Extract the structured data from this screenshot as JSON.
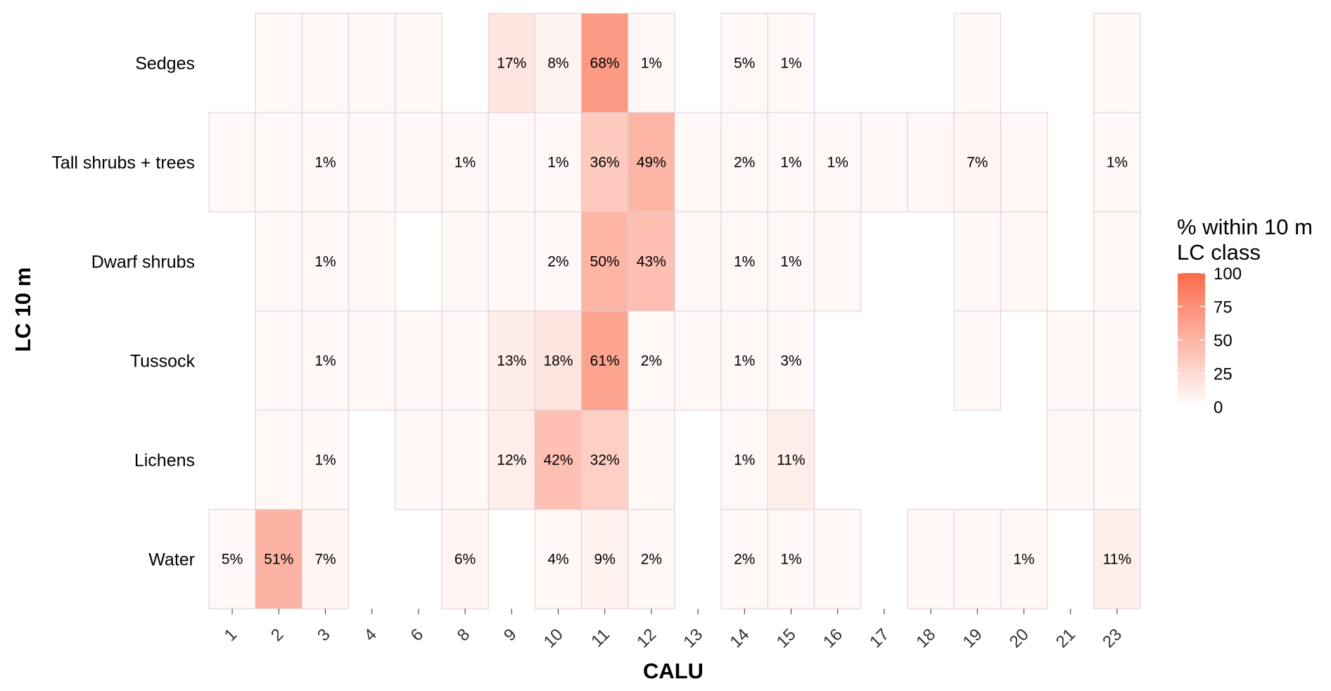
{
  "chart_data": {
    "type": "heatmap",
    "xlabel": "CALU",
    "ylabel": "LC 10 m",
    "x_categories": [
      "1",
      "2",
      "3",
      "4",
      "6",
      "8",
      "9",
      "10",
      "11",
      "12",
      "13",
      "14",
      "15",
      "16",
      "17",
      "18",
      "19",
      "20",
      "21",
      "23"
    ],
    "y_categories": [
      "Sedges",
      "Tall shrubs + trees",
      "Dwarf shrubs",
      "Tussock",
      "Lichens",
      "Water"
    ],
    "legend": {
      "title_line1": "% within 10 m",
      "title_line2": "LC class",
      "range": [
        0,
        100
      ],
      "ticks": [
        "100",
        "75",
        "50",
        "25",
        "0"
      ],
      "low_color": "#ffffff",
      "high_color": "#fb6a4a",
      "placement": "right"
    },
    "cells": [
      {
        "y": "Sedges",
        "x": "2",
        "value": 0.2
      },
      {
        "y": "Sedges",
        "x": "3",
        "value": 0.2
      },
      {
        "y": "Sedges",
        "x": "4",
        "value": 0.2
      },
      {
        "y": "Sedges",
        "x": "6",
        "value": 0.2
      },
      {
        "y": "Sedges",
        "x": "9",
        "value": 17,
        "label": "17%"
      },
      {
        "y": "Sedges",
        "x": "10",
        "value": 8,
        "label": "8%"
      },
      {
        "y": "Sedges",
        "x": "11",
        "value": 68,
        "label": "68%"
      },
      {
        "y": "Sedges",
        "x": "12",
        "value": 1,
        "label": "1%"
      },
      {
        "y": "Sedges",
        "x": "14",
        "value": 5,
        "label": "5%"
      },
      {
        "y": "Sedges",
        "x": "15",
        "value": 1,
        "label": "1%"
      },
      {
        "y": "Sedges",
        "x": "19",
        "value": 0.2
      },
      {
        "y": "Sedges",
        "x": "23",
        "value": 0.2
      },
      {
        "y": "Tall shrubs + trees",
        "x": "1",
        "value": 0.3
      },
      {
        "y": "Tall shrubs + trees",
        "x": "2",
        "value": 0.3
      },
      {
        "y": "Tall shrubs + trees",
        "x": "3",
        "value": 1,
        "label": "1%"
      },
      {
        "y": "Tall shrubs + trees",
        "x": "4",
        "value": 0.3
      },
      {
        "y": "Tall shrubs + trees",
        "x": "6",
        "value": 0.3
      },
      {
        "y": "Tall shrubs + trees",
        "x": "8",
        "value": 1,
        "label": "1%"
      },
      {
        "y": "Tall shrubs + trees",
        "x": "9",
        "value": 0.3
      },
      {
        "y": "Tall shrubs + trees",
        "x": "10",
        "value": 1,
        "label": "1%"
      },
      {
        "y": "Tall shrubs + trees",
        "x": "11",
        "value": 36,
        "label": "36%"
      },
      {
        "y": "Tall shrubs + trees",
        "x": "12",
        "value": 49,
        "label": "49%"
      },
      {
        "y": "Tall shrubs + trees",
        "x": "13",
        "value": 0.3
      },
      {
        "y": "Tall shrubs + trees",
        "x": "14",
        "value": 2,
        "label": "2%"
      },
      {
        "y": "Tall shrubs + trees",
        "x": "15",
        "value": 1,
        "label": "1%"
      },
      {
        "y": "Tall shrubs + trees",
        "x": "16",
        "value": 1,
        "label": "1%"
      },
      {
        "y": "Tall shrubs + trees",
        "x": "17",
        "value": 0.3
      },
      {
        "y": "Tall shrubs + trees",
        "x": "18",
        "value": 0.3
      },
      {
        "y": "Tall shrubs + trees",
        "x": "19",
        "value": 7,
        "label": "7%"
      },
      {
        "y": "Tall shrubs + trees",
        "x": "20",
        "value": 0.3
      },
      {
        "y": "Tall shrubs + trees",
        "x": "23",
        "value": 1,
        "label": "1%"
      },
      {
        "y": "Dwarf shrubs",
        "x": "2",
        "value": 0.3
      },
      {
        "y": "Dwarf shrubs",
        "x": "3",
        "value": 1,
        "label": "1%"
      },
      {
        "y": "Dwarf shrubs",
        "x": "4",
        "value": 0.3
      },
      {
        "y": "Dwarf shrubs",
        "x": "8",
        "value": 0.3
      },
      {
        "y": "Dwarf shrubs",
        "x": "9",
        "value": 0.3
      },
      {
        "y": "Dwarf shrubs",
        "x": "10",
        "value": 2,
        "label": "2%"
      },
      {
        "y": "Dwarf shrubs",
        "x": "11",
        "value": 50,
        "label": "50%"
      },
      {
        "y": "Dwarf shrubs",
        "x": "12",
        "value": 43,
        "label": "43%"
      },
      {
        "y": "Dwarf shrubs",
        "x": "13",
        "value": 0.3
      },
      {
        "y": "Dwarf shrubs",
        "x": "14",
        "value": 1,
        "label": "1%"
      },
      {
        "y": "Dwarf shrubs",
        "x": "15",
        "value": 1,
        "label": "1%"
      },
      {
        "y": "Dwarf shrubs",
        "x": "16",
        "value": 0.3
      },
      {
        "y": "Dwarf shrubs",
        "x": "19",
        "value": 0.3
      },
      {
        "y": "Dwarf shrubs",
        "x": "20",
        "value": 0.3
      },
      {
        "y": "Dwarf shrubs",
        "x": "23",
        "value": 0.3
      },
      {
        "y": "Tussock",
        "x": "2",
        "value": 0.3
      },
      {
        "y": "Tussock",
        "x": "3",
        "value": 1,
        "label": "1%"
      },
      {
        "y": "Tussock",
        "x": "4",
        "value": 0.3
      },
      {
        "y": "Tussock",
        "x": "6",
        "value": 0.3
      },
      {
        "y": "Tussock",
        "x": "8",
        "value": 0.3
      },
      {
        "y": "Tussock",
        "x": "9",
        "value": 13,
        "label": "13%"
      },
      {
        "y": "Tussock",
        "x": "10",
        "value": 18,
        "label": "18%"
      },
      {
        "y": "Tussock",
        "x": "11",
        "value": 61,
        "label": "61%"
      },
      {
        "y": "Tussock",
        "x": "12",
        "value": 2,
        "label": "2%"
      },
      {
        "y": "Tussock",
        "x": "13",
        "value": 0.3
      },
      {
        "y": "Tussock",
        "x": "14",
        "value": 1,
        "label": "1%"
      },
      {
        "y": "Tussock",
        "x": "15",
        "value": 3,
        "label": "3%"
      },
      {
        "y": "Tussock",
        "x": "19",
        "value": 0.3
      },
      {
        "y": "Tussock",
        "x": "21",
        "value": 0.3
      },
      {
        "y": "Tussock",
        "x": "23",
        "value": 0.3
      },
      {
        "y": "Lichens",
        "x": "2",
        "value": 0.3
      },
      {
        "y": "Lichens",
        "x": "3",
        "value": 1,
        "label": "1%"
      },
      {
        "y": "Lichens",
        "x": "6",
        "value": 0.3
      },
      {
        "y": "Lichens",
        "x": "8",
        "value": 0.3
      },
      {
        "y": "Lichens",
        "x": "9",
        "value": 12,
        "label": "12%"
      },
      {
        "y": "Lichens",
        "x": "10",
        "value": 42,
        "label": "42%"
      },
      {
        "y": "Lichens",
        "x": "11",
        "value": 32,
        "label": "32%"
      },
      {
        "y": "Lichens",
        "x": "12",
        "value": 0.3
      },
      {
        "y": "Lichens",
        "x": "14",
        "value": 1,
        "label": "1%"
      },
      {
        "y": "Lichens",
        "x": "15",
        "value": 11,
        "label": "11%"
      },
      {
        "y": "Lichens",
        "x": "21",
        "value": 0.3
      },
      {
        "y": "Lichens",
        "x": "23",
        "value": 0.3
      },
      {
        "y": "Water",
        "x": "1",
        "value": 5,
        "label": "5%"
      },
      {
        "y": "Water",
        "x": "2",
        "value": 51,
        "label": "51%"
      },
      {
        "y": "Water",
        "x": "3",
        "value": 7,
        "label": "7%"
      },
      {
        "y": "Water",
        "x": "8",
        "value": 6,
        "label": "6%"
      },
      {
        "y": "Water",
        "x": "10",
        "value": 4,
        "label": "4%"
      },
      {
        "y": "Water",
        "x": "11",
        "value": 9,
        "label": "9%"
      },
      {
        "y": "Water",
        "x": "12",
        "value": 2,
        "label": "2%"
      },
      {
        "y": "Water",
        "x": "14",
        "value": 2,
        "label": "2%"
      },
      {
        "y": "Water",
        "x": "15",
        "value": 1,
        "label": "1%"
      },
      {
        "y": "Water",
        "x": "16",
        "value": 0.3
      },
      {
        "y": "Water",
        "x": "18",
        "value": 0.3
      },
      {
        "y": "Water",
        "x": "19",
        "value": 0.3
      },
      {
        "y": "Water",
        "x": "20",
        "value": 1,
        "label": "1%"
      },
      {
        "y": "Water",
        "x": "23",
        "value": 11,
        "label": "11%"
      }
    ]
  }
}
